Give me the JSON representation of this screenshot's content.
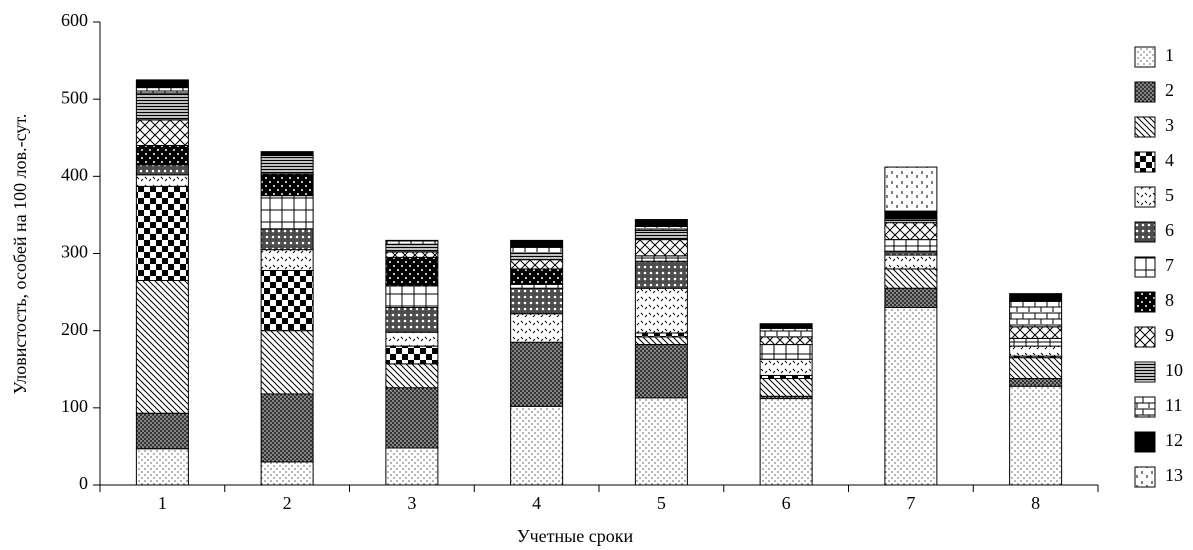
{
  "chart_data": {
    "type": "stacked-bar",
    "y_label": "Уловистость, особей на 100 лов.-сут.",
    "x_label": "Учетные сроки",
    "categories": [
      "1",
      "2",
      "3",
      "4",
      "5",
      "6",
      "7",
      "8"
    ],
    "ylim": [
      0,
      600
    ],
    "yticks": [
      0,
      100,
      200,
      300,
      400,
      500,
      600
    ],
    "legend": "right",
    "series": [
      {
        "name": "1",
        "color": "#000000",
        "values": [
          47,
          30,
          48,
          102,
          113,
          112,
          230,
          128
        ]
      },
      {
        "name": "2",
        "color": "#000000",
        "values": [
          46,
          88,
          78,
          83,
          69,
          3,
          25,
          10
        ]
      },
      {
        "name": "3",
        "color": "#000000",
        "values": [
          172,
          82,
          31,
          0,
          10,
          23,
          25,
          27
        ]
      },
      {
        "name": "4",
        "color": "#000000",
        "values": [
          122,
          78,
          23,
          0,
          5,
          4,
          0,
          2
        ]
      },
      {
        "name": "5",
        "color": "#000000",
        "values": [
          15,
          27,
          18,
          37,
          58,
          21,
          18,
          13
        ]
      },
      {
        "name": "6",
        "color": "#000000",
        "values": [
          13,
          27,
          32,
          33,
          35,
          0,
          5,
          0
        ]
      },
      {
        "name": "7",
        "color": "#000000",
        "values": [
          0,
          43,
          28,
          5,
          7,
          19,
          15,
          10
        ]
      },
      {
        "name": "8",
        "color": "#000000",
        "values": [
          25,
          28,
          37,
          20,
          0,
          0,
          0,
          0
        ]
      },
      {
        "name": "9",
        "color": "#000000",
        "values": [
          33,
          0,
          7,
          12,
          21,
          10,
          22,
          15
        ]
      },
      {
        "name": "10",
        "color": "#000000",
        "values": [
          35,
          24,
          10,
          8,
          12,
          0,
          5,
          0
        ]
      },
      {
        "name": "11",
        "color": "#000000",
        "values": [
          7,
          0,
          5,
          8,
          5,
          11,
          0,
          33
        ]
      },
      {
        "name": "12",
        "color": "#000000",
        "values": [
          10,
          5,
          0,
          9,
          9,
          6,
          10,
          10
        ]
      },
      {
        "name": "13",
        "color": "#000000",
        "values": [
          0,
          0,
          0,
          0,
          0,
          0,
          57,
          0
        ]
      }
    ]
  }
}
